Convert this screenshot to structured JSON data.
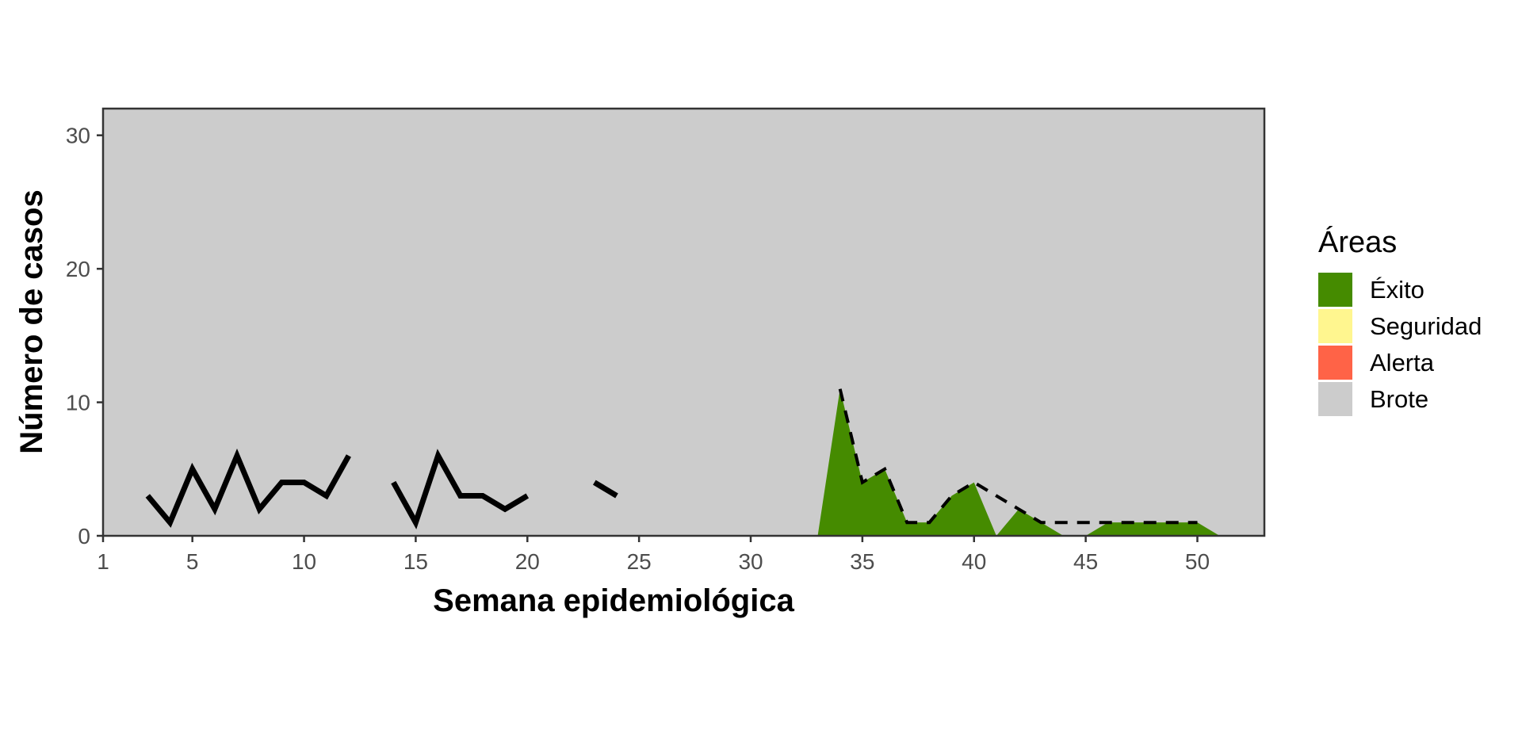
{
  "chart_data": {
    "type": "area",
    "xlabel": "Semana epidemiológica",
    "ylabel": "Número de casos",
    "xlim": [
      1,
      53
    ],
    "ylim": [
      0,
      32
    ],
    "x_ticks": [
      1,
      5,
      10,
      15,
      20,
      25,
      30,
      35,
      40,
      45,
      50
    ],
    "y_ticks": [
      0,
      10,
      20,
      30
    ],
    "grid": false,
    "legend": {
      "title": "Áreas",
      "position": "right",
      "items": [
        {
          "label": "Éxito",
          "color": "#458B00"
        },
        {
          "label": "Seguridad",
          "color": "#FFF68F"
        },
        {
          "label": "Alerta",
          "color": "#FF6347"
        },
        {
          "label": "Brote",
          "color": "#CCCCCC"
        }
      ]
    },
    "background_color": "#CCCCCC",
    "exito_area": {
      "color": "#458B00",
      "x": [
        33,
        34,
        35,
        36,
        37,
        38,
        39,
        40,
        41,
        42,
        43,
        44,
        45,
        46,
        47,
        48,
        49,
        50,
        51
      ],
      "y": [
        0,
        11,
        4,
        5,
        1,
        1,
        3,
        4,
        0,
        2,
        1,
        0,
        0,
        1,
        1,
        1,
        1,
        1,
        0
      ]
    },
    "series": [
      {
        "style": "solid",
        "color": "#000000",
        "x": [
          3,
          4,
          5,
          6,
          7,
          8,
          9,
          10,
          11,
          12,
          13,
          14,
          15,
          16,
          17,
          18,
          19,
          20,
          21,
          22,
          23,
          24
        ],
        "y": [
          3,
          1,
          5,
          2,
          6,
          2,
          4,
          4,
          3,
          6,
          null,
          4,
          1,
          6,
          3,
          3,
          2,
          3,
          null,
          null,
          4,
          3
        ]
      },
      {
        "style": "dashed",
        "color": "#000000",
        "x": [
          34,
          35,
          36,
          37,
          38,
          39,
          40,
          41,
          42,
          43,
          44,
          45,
          46,
          47,
          48,
          49,
          50
        ],
        "y": [
          11,
          4,
          5,
          1,
          1,
          3,
          4,
          3,
          2,
          1,
          1,
          1,
          1,
          1,
          1,
          1,
          1
        ]
      }
    ]
  }
}
